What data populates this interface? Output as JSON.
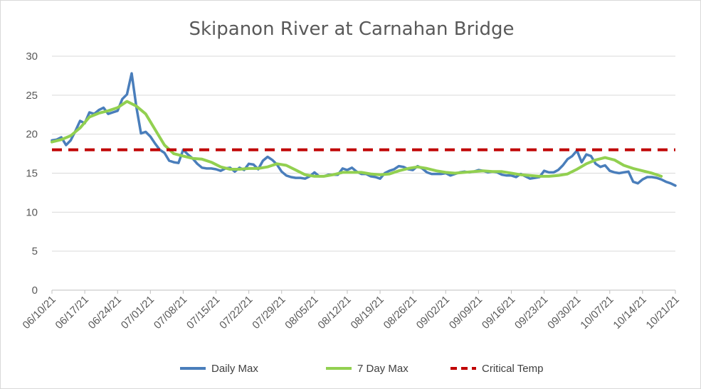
{
  "chart_data": {
    "type": "line",
    "title": "Skipanon River at Carnahan Bridge",
    "xlabel": "",
    "ylabel": "",
    "ylim": [
      0,
      30
    ],
    "yticks": [
      0,
      5,
      10,
      15,
      20,
      25,
      30
    ],
    "x_start": "06/10/21",
    "x_end": "10/21/21",
    "xticks": [
      "06/10/21",
      "06/17/21",
      "06/24/21",
      "07/01/21",
      "07/08/21",
      "07/15/21",
      "07/22/21",
      "07/29/21",
      "08/05/21",
      "08/12/21",
      "08/19/21",
      "08/26/21",
      "09/02/21",
      "09/09/21",
      "09/16/21",
      "09/23/21",
      "09/30/21",
      "10/07/21",
      "10/14/21",
      "10/21/21"
    ],
    "grid": "horizontal",
    "legend_position": "bottom",
    "series": [
      {
        "name": "Daily Max",
        "color": "#4a7ebb",
        "x": [
          "06/10/21",
          "06/11/21",
          "06/12/21",
          "06/13/21",
          "06/14/21",
          "06/15/21",
          "06/16/21",
          "06/17/21",
          "06/18/21",
          "06/19/21",
          "06/20/21",
          "06/21/21",
          "06/22/21",
          "06/23/21",
          "06/24/21",
          "06/25/21",
          "06/26/21",
          "06/27/21",
          "06/28/21",
          "06/29/21",
          "06/30/21",
          "07/01/21",
          "07/02/21",
          "07/03/21",
          "07/04/21",
          "07/05/21",
          "07/06/21",
          "07/07/21",
          "07/08/21",
          "07/09/21",
          "07/10/21",
          "07/11/21",
          "07/12/21",
          "07/13/21",
          "07/14/21",
          "07/15/21",
          "07/16/21",
          "07/17/21",
          "07/18/21",
          "07/19/21",
          "07/20/21",
          "07/21/21",
          "07/22/21",
          "07/23/21",
          "07/24/21",
          "07/25/21",
          "07/26/21",
          "07/27/21",
          "07/28/21",
          "07/29/21",
          "07/30/21",
          "07/31/21",
          "08/01/21",
          "08/02/21",
          "08/03/21",
          "08/04/21",
          "08/05/21",
          "08/06/21",
          "08/07/21",
          "08/08/21",
          "08/09/21",
          "08/10/21",
          "08/11/21",
          "08/12/21",
          "08/13/21",
          "08/14/21",
          "08/15/21",
          "08/16/21",
          "08/17/21",
          "08/18/21",
          "08/19/21",
          "08/20/21",
          "08/21/21",
          "08/22/21",
          "08/23/21",
          "08/24/21",
          "08/25/21",
          "08/26/21",
          "08/27/21",
          "08/28/21",
          "08/29/21",
          "08/30/21",
          "08/31/21",
          "09/01/21",
          "09/02/21",
          "09/03/21",
          "09/04/21",
          "09/05/21",
          "09/06/21",
          "09/07/21",
          "09/08/21",
          "09/09/21",
          "09/10/21",
          "09/11/21",
          "09/12/21",
          "09/13/21",
          "09/14/21",
          "09/15/21",
          "09/16/21",
          "09/17/21",
          "09/18/21",
          "09/19/21",
          "09/20/21",
          "09/21/21",
          "09/22/21",
          "09/23/21",
          "09/24/21",
          "09/25/21",
          "09/26/21",
          "09/27/21",
          "09/28/21",
          "09/29/21",
          "09/30/21",
          "10/01/21",
          "10/02/21",
          "10/03/21",
          "10/04/21",
          "10/05/21",
          "10/06/21",
          "10/07/21",
          "10/08/21",
          "10/09/21",
          "10/10/21",
          "10/11/21",
          "10/12/21",
          "10/13/21",
          "10/14/21",
          "10/15/21",
          "10/16/21",
          "10/17/21",
          "10/18/21",
          "10/19/21",
          "10/20/21",
          "10/21/21"
        ],
        "values": [
          19.2,
          19.3,
          19.6,
          18.6,
          19.2,
          20.4,
          21.7,
          21.4,
          22.8,
          22.6,
          23.1,
          23.4,
          22.6,
          22.8,
          23.0,
          24.5,
          25.1,
          27.8,
          23.5,
          20.1,
          20.3,
          19.7,
          18.8,
          18.0,
          17.6,
          16.6,
          16.4,
          16.3,
          18.0,
          17.4,
          16.9,
          16.2,
          15.7,
          15.6,
          15.6,
          15.5,
          15.3,
          15.6,
          15.7,
          15.2,
          15.7,
          15.4,
          16.2,
          16.1,
          15.5,
          16.6,
          17.1,
          16.7,
          16.1,
          15.2,
          14.7,
          14.5,
          14.4,
          14.4,
          14.3,
          14.6,
          15.1,
          14.6,
          14.6,
          14.8,
          14.8,
          14.8,
          15.6,
          15.4,
          15.7,
          15.2,
          14.9,
          14.9,
          14.6,
          14.5,
          14.3,
          15.0,
          15.3,
          15.5,
          15.9,
          15.8,
          15.5,
          15.4,
          15.9,
          15.6,
          15.1,
          14.9,
          14.9,
          14.9,
          15.0,
          14.7,
          14.9,
          15.1,
          15.2,
          15.1,
          15.2,
          15.4,
          15.3,
          15.1,
          15.2,
          15.1,
          14.8,
          14.7,
          14.7,
          14.5,
          14.9,
          14.6,
          14.3,
          14.4,
          14.5,
          15.3,
          15.1,
          15.1,
          15.4,
          16.0,
          16.8,
          17.2,
          17.9,
          16.4,
          17.4,
          17.2,
          16.2,
          15.8,
          16.0,
          15.3,
          15.1,
          15.0,
          15.1,
          15.2,
          13.9,
          13.7,
          14.2,
          14.5,
          14.5,
          14.4,
          14.2,
          13.9,
          13.7,
          13.4
        ]
      },
      {
        "name": "7 Day Max",
        "color": "#92d050",
        "x": [
          "06/10/21",
          "06/12/21",
          "06/14/21",
          "06/16/21",
          "06/18/21",
          "06/20/21",
          "06/22/21",
          "06/24/21",
          "06/26/21",
          "06/28/21",
          "06/30/21",
          "07/02/21",
          "07/04/21",
          "07/06/21",
          "07/08/21",
          "07/10/21",
          "07/12/21",
          "07/14/21",
          "07/16/21",
          "07/18/21",
          "07/20/21",
          "07/22/21",
          "07/24/21",
          "07/26/21",
          "07/28/21",
          "07/30/21",
          "08/01/21",
          "08/03/21",
          "08/05/21",
          "08/07/21",
          "08/09/21",
          "08/11/21",
          "08/13/21",
          "08/15/21",
          "08/17/21",
          "08/19/21",
          "08/21/21",
          "08/23/21",
          "08/25/21",
          "08/27/21",
          "08/29/21",
          "08/31/21",
          "09/02/21",
          "09/04/21",
          "09/06/21",
          "09/08/21",
          "09/10/21",
          "09/12/21",
          "09/14/21",
          "09/16/21",
          "09/18/21",
          "09/20/21",
          "09/22/21",
          "09/24/21",
          "09/26/21",
          "09/28/21",
          "09/30/21",
          "10/02/21",
          "10/04/21",
          "10/06/21",
          "10/08/21",
          "10/10/21",
          "10/12/21",
          "10/14/21",
          "10/16/21",
          "10/18/21"
        ],
        "values": [
          19.0,
          19.3,
          19.8,
          20.8,
          22.2,
          22.7,
          23.0,
          23.4,
          24.2,
          23.6,
          22.6,
          20.6,
          18.6,
          17.5,
          17.2,
          16.9,
          16.8,
          16.4,
          15.8,
          15.5,
          15.5,
          15.6,
          15.6,
          15.8,
          16.2,
          16.0,
          15.4,
          14.8,
          14.6,
          14.6,
          14.8,
          15.1,
          15.1,
          15.1,
          14.9,
          14.8,
          14.9,
          15.3,
          15.6,
          15.8,
          15.6,
          15.3,
          15.1,
          15.0,
          15.1,
          15.2,
          15.3,
          15.2,
          15.2,
          15.0,
          14.8,
          14.7,
          14.6,
          14.6,
          14.7,
          14.9,
          15.5,
          16.2,
          16.7,
          17.0,
          16.7,
          16.0,
          15.6,
          15.3,
          15.0,
          14.6
        ]
      },
      {
        "name": "Critical Temp",
        "color": "#c00000",
        "dashed": true,
        "x": [
          "06/10/21",
          "10/21/21"
        ],
        "values": [
          18,
          18
        ]
      }
    ]
  }
}
